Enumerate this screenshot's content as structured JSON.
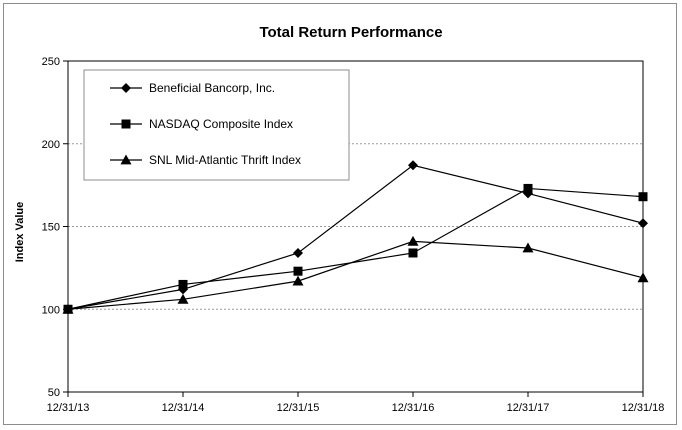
{
  "chart_data": {
    "type": "line",
    "title": "Total Return Performance",
    "xlabel": "",
    "ylabel": "Index Value",
    "categories": [
      "12/31/13",
      "12/31/14",
      "12/31/15",
      "12/31/16",
      "12/31/17",
      "12/31/18"
    ],
    "ylim": [
      50,
      250
    ],
    "yticks": [
      50,
      100,
      150,
      200,
      250
    ],
    "grid": true,
    "legend_position": "top-left",
    "series": [
      {
        "name": "Beneficial Bancorp, Inc.",
        "marker": "diamond",
        "color": "#000000",
        "values": [
          100,
          112,
          134,
          187,
          170,
          152
        ]
      },
      {
        "name": "NASDAQ Composite Index",
        "marker": "square",
        "color": "#000000",
        "values": [
          100,
          115,
          123,
          134,
          173,
          168
        ]
      },
      {
        "name": "SNL Mid-Atlantic Thrift Index",
        "marker": "triangle",
        "color": "#000000",
        "values": [
          100,
          106,
          117,
          141,
          137,
          119
        ]
      }
    ]
  }
}
